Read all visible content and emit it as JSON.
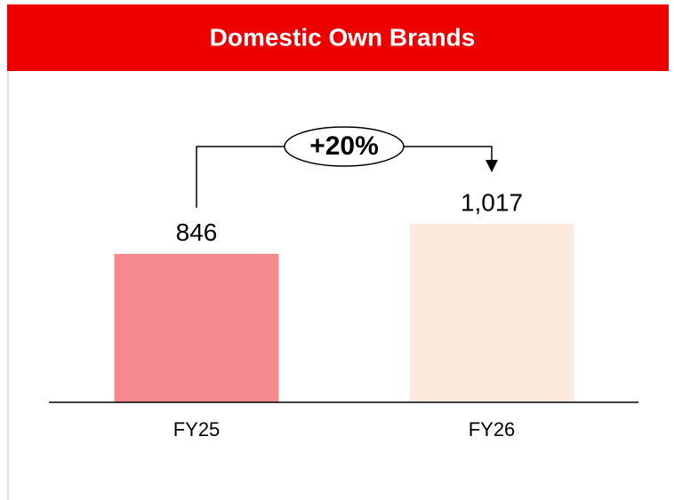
{
  "chart_data": {
    "type": "bar",
    "title": "Domestic Own Brands",
    "categories": [
      "FY25",
      "FY26"
    ],
    "values": [
      846,
      1017
    ],
    "value_labels": [
      "846",
      "1,017"
    ],
    "colors": [
      "#f48a8d",
      "#fdeadf"
    ],
    "annotation": "+20%"
  }
}
